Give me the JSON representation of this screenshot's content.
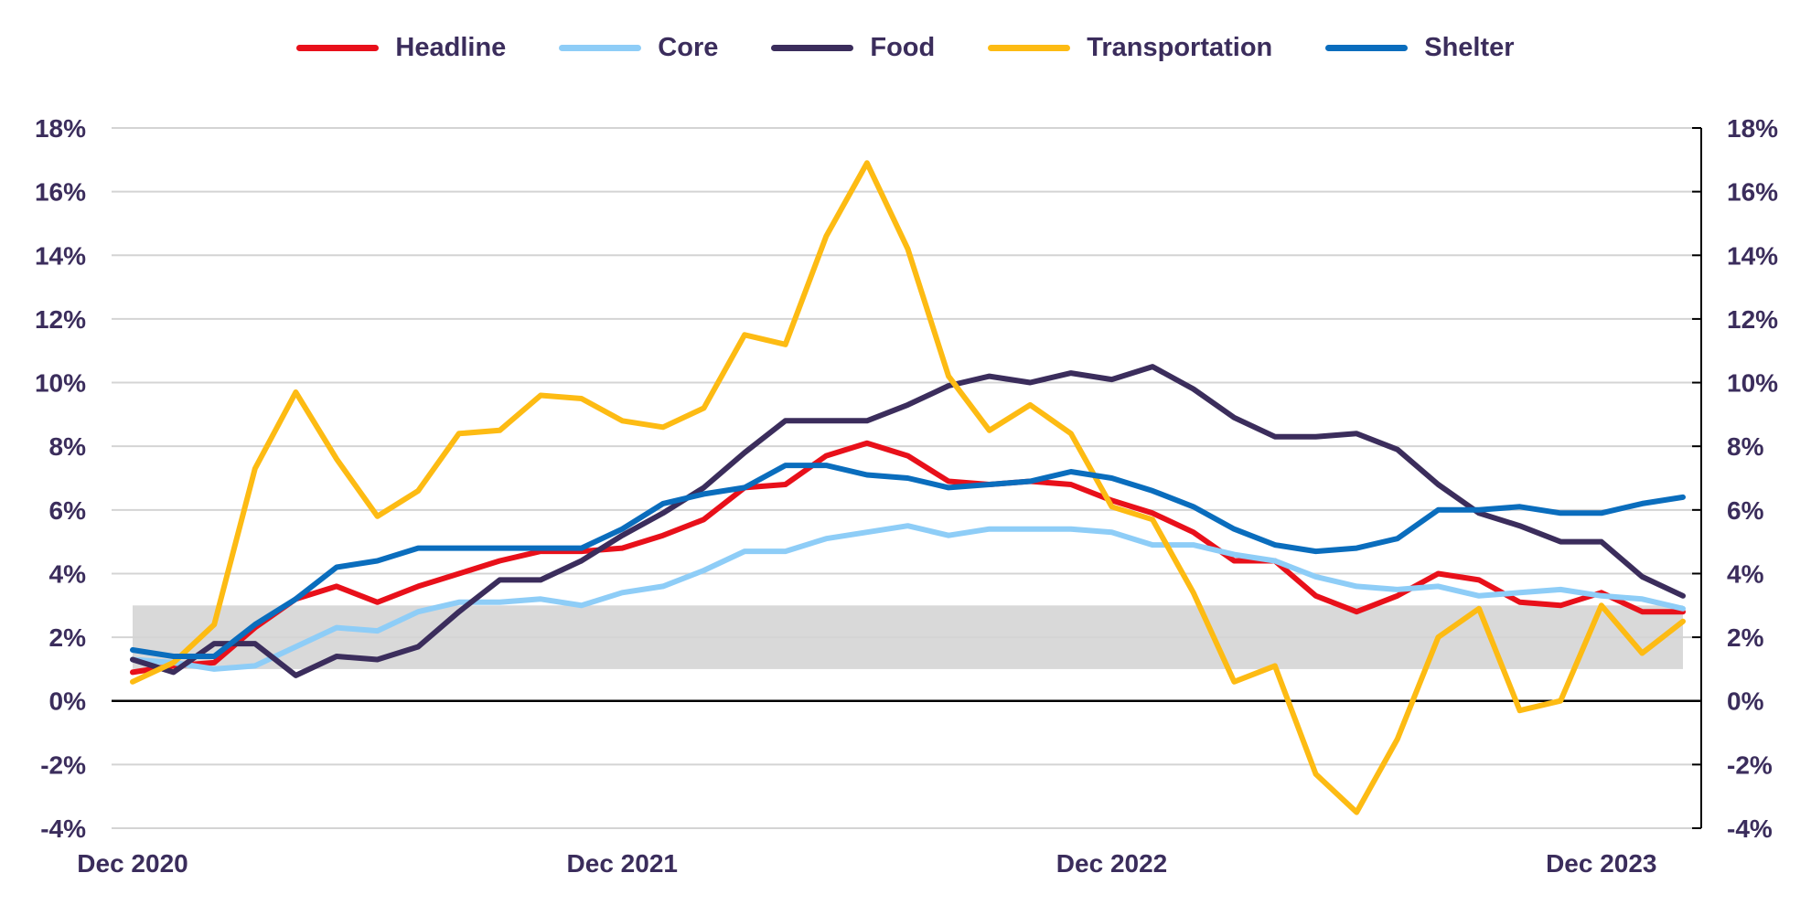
{
  "chart_data": {
    "type": "line",
    "title": "",
    "xlabel": "",
    "ylabel": "",
    "ylim": [
      -4,
      18
    ],
    "yticks": [
      "-4%",
      "-2%",
      "0%",
      "2%",
      "4%",
      "6%",
      "8%",
      "10%",
      "12%",
      "14%",
      "16%",
      "18%"
    ],
    "ytick_values": [
      -4,
      -2,
      0,
      2,
      4,
      6,
      8,
      10,
      12,
      14,
      16,
      18
    ],
    "xtick_labels": [
      "Dec 2020",
      "Dec 2021",
      "Dec 2022",
      "Dec 2023"
    ],
    "xtick_index": [
      0,
      12,
      24,
      36
    ],
    "target_band": [
      1,
      3
    ],
    "grid": true,
    "legend_position": "top",
    "x": [
      "Dec 2020",
      "Jan 2021",
      "Feb 2021",
      "Mar 2021",
      "Apr 2021",
      "May 2021",
      "Jun 2021",
      "Jul 2021",
      "Aug 2021",
      "Sep 2021",
      "Oct 2021",
      "Nov 2021",
      "Dec 2021",
      "Jan 2022",
      "Feb 2022",
      "Mar 2022",
      "Apr 2022",
      "May 2022",
      "Jun 2022",
      "Jul 2022",
      "Aug 2022",
      "Sep 2022",
      "Oct 2022",
      "Nov 2022",
      "Dec 2022",
      "Jan 2023",
      "Feb 2023",
      "Mar 2023",
      "Apr 2023",
      "May 2023",
      "Jun 2023",
      "Jul 2023",
      "Aug 2023",
      "Sep 2023",
      "Oct 2023",
      "Nov 2023",
      "Dec 2023",
      "Jan 2024",
      "Feb 2024"
    ],
    "series": [
      {
        "name": "Headline",
        "color": "#e8101a",
        "values": [
          0.9,
          1.1,
          1.2,
          2.3,
          3.2,
          3.6,
          3.1,
          3.6,
          4.0,
          4.4,
          4.7,
          4.7,
          4.8,
          5.2,
          5.7,
          6.7,
          6.8,
          7.7,
          8.1,
          7.7,
          6.9,
          6.8,
          6.9,
          6.8,
          6.3,
          5.9,
          5.3,
          4.4,
          4.4,
          3.3,
          2.8,
          3.3,
          4.0,
          3.8,
          3.1,
          3.0,
          3.4,
          2.8,
          2.8
        ]
      },
      {
        "name": "Core",
        "color": "#8ecdf7",
        "values": [
          1.3,
          1.2,
          1.0,
          1.1,
          1.7,
          2.3,
          2.2,
          2.8,
          3.1,
          3.1,
          3.2,
          3.0,
          3.4,
          3.6,
          4.1,
          4.7,
          4.7,
          5.1,
          5.3,
          5.5,
          5.2,
          5.4,
          5.4,
          5.4,
          5.3,
          4.9,
          4.9,
          4.6,
          4.4,
          3.9,
          3.6,
          3.5,
          3.6,
          3.3,
          3.4,
          3.5,
          3.3,
          3.2,
          2.9
        ]
      },
      {
        "name": "Food",
        "color": "#3b2d5c",
        "values": [
          1.3,
          0.9,
          1.8,
          1.8,
          0.8,
          1.4,
          1.3,
          1.7,
          2.8,
          3.8,
          3.8,
          4.4,
          5.2,
          5.9,
          6.7,
          7.8,
          8.8,
          8.8,
          8.8,
          9.3,
          9.9,
          10.2,
          10.0,
          10.3,
          10.1,
          10.5,
          9.8,
          8.9,
          8.3,
          8.3,
          8.4,
          7.9,
          6.8,
          5.9,
          5.5,
          5.0,
          5.0,
          3.9,
          3.3
        ]
      },
      {
        "name": "Transportation",
        "color": "#fdbb13",
        "values": [
          0.6,
          1.2,
          2.4,
          7.3,
          9.7,
          7.6,
          5.8,
          6.6,
          8.4,
          8.5,
          9.6,
          9.5,
          8.8,
          8.6,
          9.2,
          11.5,
          11.2,
          14.6,
          16.9,
          14.2,
          10.2,
          8.5,
          9.3,
          8.4,
          6.1,
          5.7,
          3.4,
          0.6,
          1.1,
          -2.3,
          -3.5,
          -1.2,
          2.0,
          2.9,
          -0.3,
          0.0,
          3.0,
          1.5,
          2.5
        ]
      },
      {
        "name": "Shelter",
        "color": "#0a6dbd",
        "values": [
          1.6,
          1.4,
          1.4,
          2.4,
          3.2,
          4.2,
          4.4,
          4.8,
          4.8,
          4.8,
          4.8,
          4.8,
          5.4,
          6.2,
          6.5,
          6.7,
          7.4,
          7.4,
          7.1,
          7.0,
          6.7,
          6.8,
          6.9,
          7.2,
          7.0,
          6.6,
          6.1,
          5.4,
          4.9,
          4.7,
          4.8,
          5.1,
          6.0,
          6.0,
          6.1,
          5.9,
          5.9,
          6.2,
          6.4
        ]
      }
    ]
  }
}
